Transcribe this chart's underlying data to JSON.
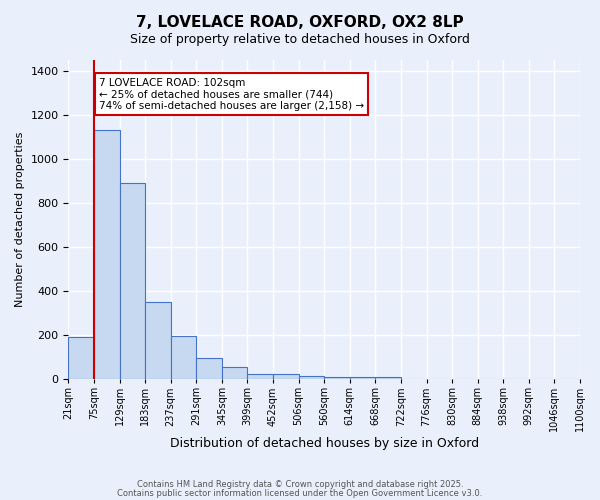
{
  "title1": "7, LOVELACE ROAD, OXFORD, OX2 8LP",
  "title2": "Size of property relative to detached houses in Oxford",
  "xlabel": "Distribution of detached houses by size in Oxford",
  "ylabel": "Number of detached properties",
  "bin_labels": [
    "21sqm",
    "75sqm",
    "129sqm",
    "183sqm",
    "237sqm",
    "291sqm",
    "345sqm",
    "399sqm",
    "452sqm",
    "506sqm",
    "560sqm",
    "614sqm",
    "668sqm",
    "722sqm",
    "776sqm",
    "830sqm",
    "884sqm",
    "938sqm",
    "992sqm",
    "1046sqm",
    "1100sqm"
  ],
  "bar_values": [
    190,
    1130,
    890,
    350,
    195,
    95,
    57,
    25,
    22,
    15,
    10,
    10,
    8,
    0,
    0,
    0,
    0,
    0,
    0,
    0
  ],
  "bar_color": "#c6d9f0",
  "bar_edge_color": "#4472c4",
  "bg_color": "#eaf0fb",
  "grid_color": "#ffffff",
  "red_line_x": 1,
  "annotation_text": "7 LOVELACE ROAD: 102sqm\n← 25% of detached houses are smaller (744)\n74% of semi-detached houses are larger (2,158) →",
  "annotation_box_color": "#ffffff",
  "annotation_box_edge": "#cc0000",
  "annotation_text_color": "#000000",
  "red_line_color": "#cc0000",
  "footer1": "Contains HM Land Registry data © Crown copyright and database right 2025.",
  "footer2": "Contains public sector information licensed under the Open Government Licence v3.0.",
  "ylim": [
    0,
    1450
  ],
  "yticks": [
    0,
    200,
    400,
    600,
    800,
    1000,
    1200,
    1400
  ]
}
